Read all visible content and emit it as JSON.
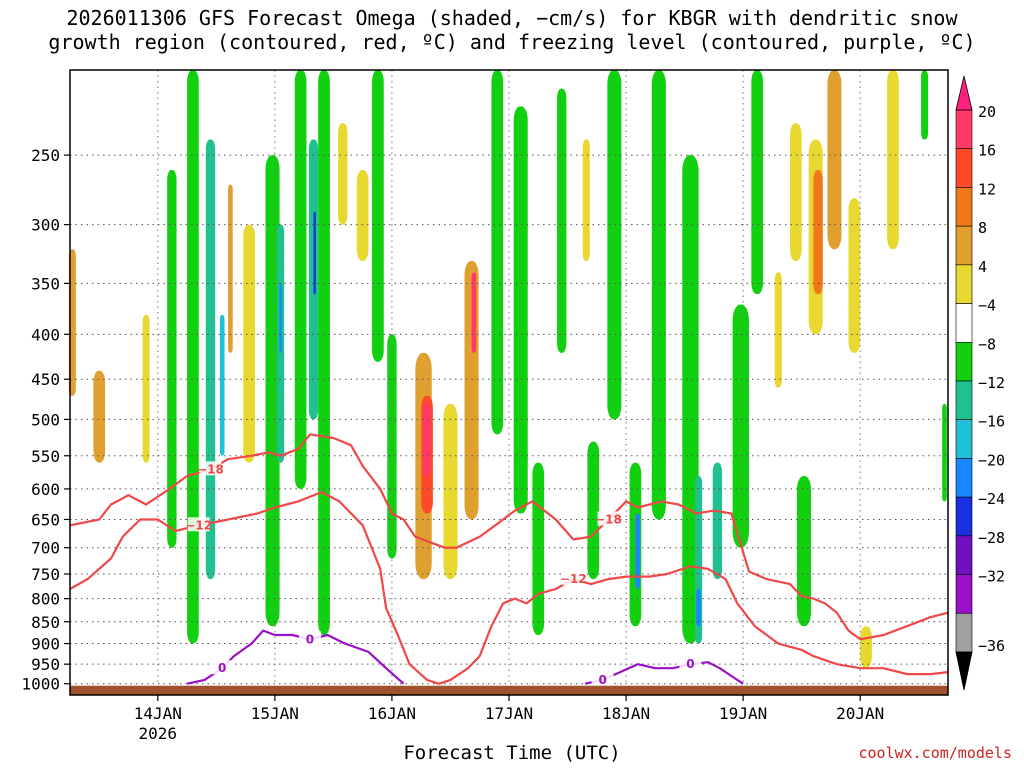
{
  "header": {
    "title_line1": "2026011306 GFS Forecast Omega (shaded, −cm/s) for KBGR with dendritic snow",
    "title_line2": "growth region (contoured, red, ºC) and freezing level (contoured, purple, ºC)"
  },
  "footer": {
    "xlabel": "Forecast Time (UTC)",
    "credit": "coolwx.com/models"
  },
  "chart_data": {
    "type": "heatmap",
    "title": "2026011306 GFS Forecast Omega (shaded, −cm/s) for KBGR with dendritic snow growth region (contoured, red, ºC) and freezing level (contoured, purple, ºC)",
    "xlabel": "Forecast Time (UTC)",
    "ylabel": "",
    "y_scale": "log-pressure",
    "y_ticks": [
      "250",
      "300",
      "350",
      "400",
      "450",
      "500",
      "550",
      "600",
      "650",
      "700",
      "750",
      "800",
      "850",
      "900",
      "950",
      "1000"
    ],
    "ylim_hpa": [
      1030,
      200
    ],
    "x_ticks": [
      {
        "day": 14,
        "label": "14JAN",
        "sub": "2026"
      },
      {
        "day": 15,
        "label": "15JAN",
        "sub": ""
      },
      {
        "day": 16,
        "label": "16JAN",
        "sub": ""
      },
      {
        "day": 17,
        "label": "17JAN",
        "sub": ""
      },
      {
        "day": 18,
        "label": "18JAN",
        "sub": ""
      },
      {
        "day": 19,
        "label": "19JAN",
        "sub": ""
      },
      {
        "day": 20,
        "label": "20JAN",
        "sub": ""
      }
    ],
    "xlim_days": [
      13.25,
      20.75
    ],
    "grid": true,
    "colorbar": {
      "labels": [
        "20",
        "16",
        "12",
        "8",
        "4",
        "−4",
        "−8",
        "−12",
        "−16",
        "−20",
        "−24",
        "−28",
        "−32",
        "−36"
      ],
      "colors": [
        "#ff3a6a",
        "#ff4a2a",
        "#f07818",
        "#e0a030",
        "#e8d830",
        "#ffffff",
        "#10d010",
        "#20c090",
        "#20c0d8",
        "#1888ff",
        "#1830e0",
        "#7010c0",
        "#9a10c8",
        "#a0a0a0"
      ],
      "top_arrow_color": "#ff2080",
      "bottom_arrow_color": "#000000"
    },
    "omega_cells": [
      {
        "day": 13.27,
        "p_top": 320,
        "p_bot": 470,
        "hw": 0.03,
        "value": 8
      },
      {
        "day": 13.5,
        "p_top": 440,
        "p_bot": 560,
        "hw": 0.05,
        "value": 8
      },
      {
        "day": 13.9,
        "p_top": 380,
        "p_bot": 560,
        "hw": 0.03,
        "value": 4
      },
      {
        "day": 14.12,
        "p_top": 260,
        "p_bot": 700,
        "hw": 0.04,
        "value": -8
      },
      {
        "day": 14.3,
        "p_top": 200,
        "p_bot": 900,
        "hw": 0.05,
        "value": -8
      },
      {
        "day": 14.45,
        "p_top": 240,
        "p_bot": 760,
        "hw": 0.04,
        "value": -12
      },
      {
        "day": 14.55,
        "p_top": 380,
        "p_bot": 550,
        "hw": 0.02,
        "value": -16
      },
      {
        "day": 14.62,
        "p_top": 270,
        "p_bot": 420,
        "hw": 0.02,
        "value": 8
      },
      {
        "day": 14.78,
        "p_top": 300,
        "p_bot": 560,
        "hw": 0.05,
        "value": 4
      },
      {
        "day": 14.98,
        "p_top": 250,
        "p_bot": 860,
        "hw": 0.06,
        "value": -8
      },
      {
        "day": 15.05,
        "p_top": 300,
        "p_bot": 560,
        "hw": 0.03,
        "value": -12
      },
      {
        "day": 15.05,
        "p_top": 350,
        "p_bot": 420,
        "hw": 0.01,
        "value": -20
      },
      {
        "day": 15.22,
        "p_top": 200,
        "p_bot": 600,
        "hw": 0.05,
        "value": -8
      },
      {
        "day": 15.33,
        "p_top": 240,
        "p_bot": 500,
        "hw": 0.04,
        "value": -12
      },
      {
        "day": 15.34,
        "p_top": 290,
        "p_bot": 360,
        "hw": 0.01,
        "value": -24
      },
      {
        "day": 15.42,
        "p_top": 200,
        "p_bot": 880,
        "hw": 0.05,
        "value": -8
      },
      {
        "day": 15.58,
        "p_top": 230,
        "p_bot": 300,
        "hw": 0.04,
        "value": 4
      },
      {
        "day": 15.75,
        "p_top": 260,
        "p_bot": 330,
        "hw": 0.05,
        "value": 4
      },
      {
        "day": 15.88,
        "p_top": 200,
        "p_bot": 430,
        "hw": 0.05,
        "value": -8
      },
      {
        "day": 16.0,
        "p_top": 400,
        "p_bot": 720,
        "hw": 0.04,
        "value": -8
      },
      {
        "day": 16.27,
        "p_top": 420,
        "p_bot": 760,
        "hw": 0.07,
        "value": 8
      },
      {
        "day": 16.3,
        "p_top": 470,
        "p_bot": 640,
        "hw": 0.05,
        "value": 16
      },
      {
        "day": 16.3,
        "p_top": 480,
        "p_bot": 580,
        "hw": 0.03,
        "value": 20
      },
      {
        "day": 16.5,
        "p_top": 480,
        "p_bot": 760,
        "hw": 0.06,
        "value": 4
      },
      {
        "day": 16.68,
        "p_top": 330,
        "p_bot": 650,
        "hw": 0.06,
        "value": 8
      },
      {
        "day": 16.7,
        "p_top": 340,
        "p_bot": 420,
        "hw": 0.02,
        "value": 20
      },
      {
        "day": 16.9,
        "p_top": 200,
        "p_bot": 520,
        "hw": 0.05,
        "value": -8
      },
      {
        "day": 17.1,
        "p_top": 220,
        "p_bot": 640,
        "hw": 0.06,
        "value": -8
      },
      {
        "day": 17.25,
        "p_top": 560,
        "p_bot": 880,
        "hw": 0.05,
        "value": -8
      },
      {
        "day": 17.45,
        "p_top": 210,
        "p_bot": 420,
        "hw": 0.04,
        "value": -8
      },
      {
        "day": 17.66,
        "p_top": 240,
        "p_bot": 330,
        "hw": 0.03,
        "value": 4
      },
      {
        "day": 17.72,
        "p_top": 530,
        "p_bot": 760,
        "hw": 0.05,
        "value": -8
      },
      {
        "day": 17.9,
        "p_top": 200,
        "p_bot": 500,
        "hw": 0.06,
        "value": -8
      },
      {
        "day": 18.08,
        "p_top": 560,
        "p_bot": 860,
        "hw": 0.05,
        "value": -8
      },
      {
        "day": 18.1,
        "p_top": 640,
        "p_bot": 780,
        "hw": 0.02,
        "value": -20
      },
      {
        "day": 18.28,
        "p_top": 200,
        "p_bot": 650,
        "hw": 0.06,
        "value": -8
      },
      {
        "day": 18.55,
        "p_top": 250,
        "p_bot": 900,
        "hw": 0.07,
        "value": -8
      },
      {
        "day": 18.62,
        "p_top": 580,
        "p_bot": 900,
        "hw": 0.03,
        "value": -12
      },
      {
        "day": 18.62,
        "p_top": 780,
        "p_bot": 860,
        "hw": 0.02,
        "value": -20
      },
      {
        "day": 18.78,
        "p_top": 560,
        "p_bot": 760,
        "hw": 0.04,
        "value": -12
      },
      {
        "day": 18.98,
        "p_top": 370,
        "p_bot": 700,
        "hw": 0.07,
        "value": -8
      },
      {
        "day": 19.12,
        "p_top": 200,
        "p_bot": 360,
        "hw": 0.05,
        "value": -8
      },
      {
        "day": 19.3,
        "p_top": 340,
        "p_bot": 460,
        "hw": 0.03,
        "value": 4
      },
      {
        "day": 19.45,
        "p_top": 230,
        "p_bot": 330,
        "hw": 0.05,
        "value": 4
      },
      {
        "day": 19.52,
        "p_top": 580,
        "p_bot": 860,
        "hw": 0.06,
        "value": -8
      },
      {
        "day": 19.62,
        "p_top": 240,
        "p_bot": 400,
        "hw": 0.06,
        "value": 4
      },
      {
        "day": 19.64,
        "p_top": 260,
        "p_bot": 360,
        "hw": 0.04,
        "value": 12
      },
      {
        "day": 19.78,
        "p_top": 200,
        "p_bot": 320,
        "hw": 0.06,
        "value": 8
      },
      {
        "day": 19.95,
        "p_top": 280,
        "p_bot": 420,
        "hw": 0.05,
        "value": 4
      },
      {
        "day": 20.05,
        "p_top": 860,
        "p_bot": 960,
        "hw": 0.05,
        "value": 4
      },
      {
        "day": 20.28,
        "p_top": 200,
        "p_bot": 320,
        "hw": 0.05,
        "value": 4
      },
      {
        "day": 20.55,
        "p_top": 200,
        "p_bot": 240,
        "hw": 0.03,
        "value": -8
      },
      {
        "day": 20.72,
        "p_top": 480,
        "p_bot": 620,
        "hw": 0.02,
        "value": -8
      }
    ],
    "contours": [
      {
        "name": "",
        "level": -18,
        "color": "#f04848",
        "points": [
          [
            13.25,
            660
          ],
          [
            13.5,
            650
          ],
          [
            13.6,
            625
          ],
          [
            13.75,
            610
          ],
          [
            13.9,
            625
          ],
          [
            14.1,
            600
          ],
          [
            14.25,
            580
          ],
          [
            14.45,
            570
          ],
          [
            14.6,
            555
          ],
          [
            14.8,
            550
          ],
          [
            14.95,
            545
          ],
          [
            15.05,
            550
          ],
          [
            15.2,
            540
          ],
          [
            15.3,
            520
          ],
          [
            15.5,
            525
          ],
          [
            15.65,
            535
          ],
          [
            15.75,
            565
          ],
          [
            15.9,
            600
          ],
          [
            16.0,
            640
          ],
          [
            16.1,
            650
          ],
          [
            16.2,
            680
          ],
          [
            16.45,
            700
          ],
          [
            16.55,
            700
          ],
          [
            16.75,
            680
          ],
          [
            16.95,
            650
          ],
          [
            17.05,
            635
          ],
          [
            17.2,
            620
          ],
          [
            17.4,
            650
          ],
          [
            17.55,
            685
          ],
          [
            17.7,
            680
          ],
          [
            17.85,
            650
          ],
          [
            18.0,
            620
          ],
          [
            18.1,
            630
          ],
          [
            18.3,
            620
          ],
          [
            18.45,
            625
          ],
          [
            18.6,
            640
          ],
          [
            18.75,
            635
          ],
          [
            18.9,
            640
          ],
          [
            19.05,
            745
          ],
          [
            19.2,
            760
          ],
          [
            19.4,
            770
          ],
          [
            19.5,
            795
          ],
          [
            19.6,
            800
          ],
          [
            19.7,
            810
          ],
          [
            19.8,
            830
          ],
          [
            19.9,
            870
          ],
          [
            20.0,
            890
          ],
          [
            20.2,
            880
          ],
          [
            20.4,
            860
          ],
          [
            20.6,
            840
          ],
          [
            20.75,
            830
          ]
        ]
      },
      {
        "name": "",
        "level": -12,
        "color": "#f04848",
        "points": [
          [
            13.25,
            780
          ],
          [
            13.4,
            760
          ],
          [
            13.6,
            720
          ],
          [
            13.7,
            680
          ],
          [
            13.85,
            650
          ],
          [
            14.0,
            650
          ],
          [
            14.15,
            670
          ],
          [
            14.35,
            660
          ],
          [
            14.6,
            650
          ],
          [
            14.85,
            640
          ],
          [
            15.0,
            630
          ],
          [
            15.2,
            620
          ],
          [
            15.4,
            605
          ],
          [
            15.55,
            620
          ],
          [
            15.75,
            660
          ],
          [
            15.9,
            740
          ],
          [
            15.95,
            820
          ],
          [
            16.05,
            880
          ],
          [
            16.15,
            950
          ],
          [
            16.3,
            990
          ],
          [
            16.4,
            1000
          ],
          [
            16.5,
            990
          ],
          [
            16.65,
            960
          ],
          [
            16.75,
            930
          ],
          [
            16.85,
            860
          ],
          [
            16.95,
            810
          ],
          [
            17.05,
            800
          ],
          [
            17.15,
            810
          ],
          [
            17.25,
            790
          ],
          [
            17.4,
            780
          ],
          [
            17.55,
            760
          ],
          [
            17.7,
            770
          ],
          [
            17.85,
            760
          ],
          [
            18.0,
            755
          ],
          [
            18.2,
            755
          ],
          [
            18.35,
            750
          ],
          [
            18.55,
            735
          ],
          [
            18.7,
            740
          ],
          [
            18.85,
            760
          ],
          [
            18.95,
            810
          ],
          [
            19.1,
            860
          ],
          [
            19.3,
            900
          ],
          [
            19.5,
            915
          ],
          [
            19.6,
            930
          ],
          [
            19.8,
            950
          ],
          [
            20.0,
            960
          ],
          [
            20.2,
            960
          ],
          [
            20.4,
            975
          ],
          [
            20.6,
            975
          ],
          [
            20.75,
            970
          ]
        ]
      },
      {
        "name": "",
        "level": 0,
        "color": "#9a10c8",
        "points": [
          [
            14.25,
            1000
          ],
          [
            14.4,
            990
          ],
          [
            14.55,
            960
          ],
          [
            14.65,
            930
          ],
          [
            14.8,
            900
          ],
          [
            14.9,
            870
          ],
          [
            15.0,
            880
          ],
          [
            15.15,
            880
          ],
          [
            15.3,
            890
          ],
          [
            15.45,
            880
          ],
          [
            15.6,
            900
          ],
          [
            15.8,
            920
          ],
          [
            15.95,
            960
          ],
          [
            16.1,
            1000
          ]
        ]
      },
      {
        "name": "",
        "level": 0,
        "color": "#9a10c8",
        "points": [
          [
            17.65,
            1000
          ],
          [
            17.8,
            990
          ],
          [
            17.95,
            970
          ],
          [
            18.1,
            950
          ],
          [
            18.25,
            960
          ],
          [
            18.4,
            960
          ],
          [
            18.55,
            950
          ],
          [
            18.7,
            945
          ],
          [
            18.8,
            960
          ],
          [
            18.9,
            980
          ],
          [
            19.0,
            1000
          ]
        ]
      }
    ]
  }
}
